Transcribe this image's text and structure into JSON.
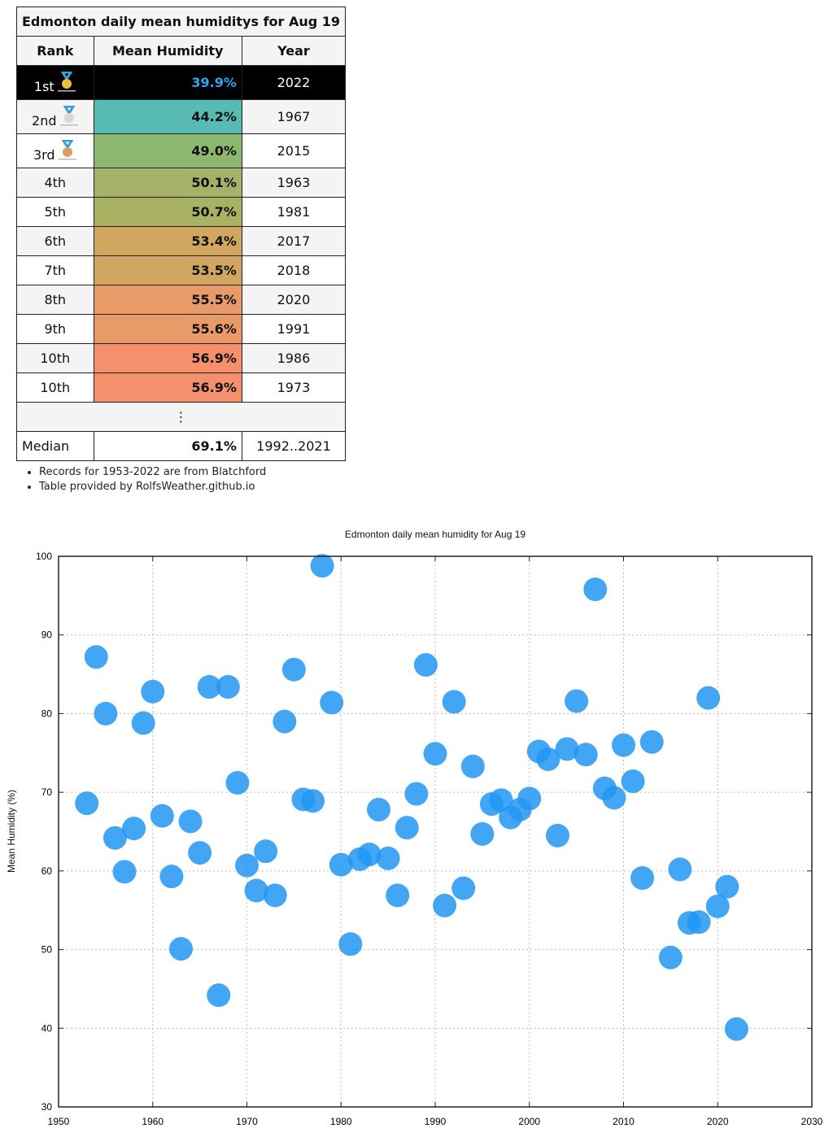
{
  "table": {
    "title": "Edmonton daily mean humiditys for Aug 19",
    "headers": [
      "Rank",
      "Mean Humidity",
      "Year"
    ],
    "rows": [
      {
        "rank": "1st",
        "value": "39.9%",
        "year": "2022",
        "medal": "gold",
        "color": "#000000"
      },
      {
        "rank": "2nd",
        "value": "44.2%",
        "year": "1967",
        "medal": "silver",
        "color": "#57bab3"
      },
      {
        "rank": "3rd",
        "value": "49.0%",
        "year": "2015",
        "medal": "bronze",
        "color": "#8fb86f"
      },
      {
        "rank": "4th",
        "value": "50.1%",
        "year": "1963",
        "color": "#a3b268"
      },
      {
        "rank": "5th",
        "value": "50.7%",
        "year": "1981",
        "color": "#a8b262"
      },
      {
        "rank": "6th",
        "value": "53.4%",
        "year": "2017",
        "color": "#d1a661"
      },
      {
        "rank": "7th",
        "value": "53.5%",
        "year": "2018",
        "color": "#d1a661"
      },
      {
        "rank": "8th",
        "value": "55.5%",
        "year": "2020",
        "color": "#e89b68"
      },
      {
        "rank": "9th",
        "value": "55.6%",
        "year": "1991",
        "color": "#e89b68"
      },
      {
        "rank": "10th",
        "value": "56.9%",
        "year": "1986",
        "color": "#f5906d"
      },
      {
        "rank": "10th",
        "value": "56.9%",
        "year": "1973",
        "color": "#f5906d"
      }
    ],
    "ellipsis": "⋮",
    "median": {
      "label": "Median",
      "value": "69.1%",
      "years": "1992..2021"
    }
  },
  "notes": [
    "Records for 1953-2022 are from Blatchford",
    "Table provided by RolfsWeather.github.io"
  ],
  "chart_data": {
    "type": "scatter",
    "title": "Edmonton daily mean humidity for Aug 19",
    "xlabel": "",
    "ylabel": "Mean Humidity (%)",
    "xlim": [
      1950,
      2030
    ],
    "ylim": [
      30,
      100
    ],
    "xticks": [
      1950,
      1960,
      1970,
      1980,
      1990,
      2000,
      2010,
      2020,
      2030
    ],
    "yticks": [
      30,
      40,
      50,
      60,
      70,
      80,
      90,
      100
    ],
    "grid": true,
    "point_color": "#2196f3",
    "x": [
      1953,
      1954,
      1955,
      1956,
      1957,
      1958,
      1959,
      1960,
      1961,
      1962,
      1963,
      1964,
      1965,
      1966,
      1967,
      1968,
      1969,
      1970,
      1971,
      1972,
      1973,
      1974,
      1975,
      1976,
      1977,
      1978,
      1979,
      1980,
      1981,
      1982,
      1983,
      1984,
      1985,
      1986,
      1987,
      1988,
      1989,
      1990,
      1991,
      1992,
      1993,
      1994,
      1995,
      1996,
      1997,
      1998,
      1999,
      2000,
      2001,
      2002,
      2003,
      2004,
      2005,
      2006,
      2007,
      2008,
      2009,
      2010,
      2011,
      2012,
      2013,
      2015,
      2016,
      2017,
      2018,
      2019,
      2020,
      2021,
      2022
    ],
    "y": [
      68.6,
      87.2,
      80.0,
      64.2,
      59.9,
      65.4,
      78.8,
      82.8,
      67.0,
      59.3,
      50.1,
      66.3,
      62.3,
      83.4,
      44.2,
      83.4,
      71.2,
      60.7,
      57.5,
      62.5,
      56.9,
      79.0,
      85.6,
      69.1,
      68.9,
      98.8,
      81.4,
      60.8,
      50.7,
      61.5,
      62.1,
      67.8,
      61.6,
      56.9,
      65.5,
      69.8,
      86.2,
      74.9,
      55.6,
      81.5,
      57.8,
      73.3,
      64.7,
      68.5,
      69.0,
      66.8,
      67.8,
      69.2,
      75.2,
      74.2,
      64.5,
      75.5,
      81.6,
      74.8,
      95.8,
      70.5,
      69.3,
      76.0,
      71.4,
      59.1,
      76.4,
      49.0,
      60.2,
      53.4,
      53.5,
      82.0,
      55.5,
      58.0,
      39.9
    ]
  }
}
